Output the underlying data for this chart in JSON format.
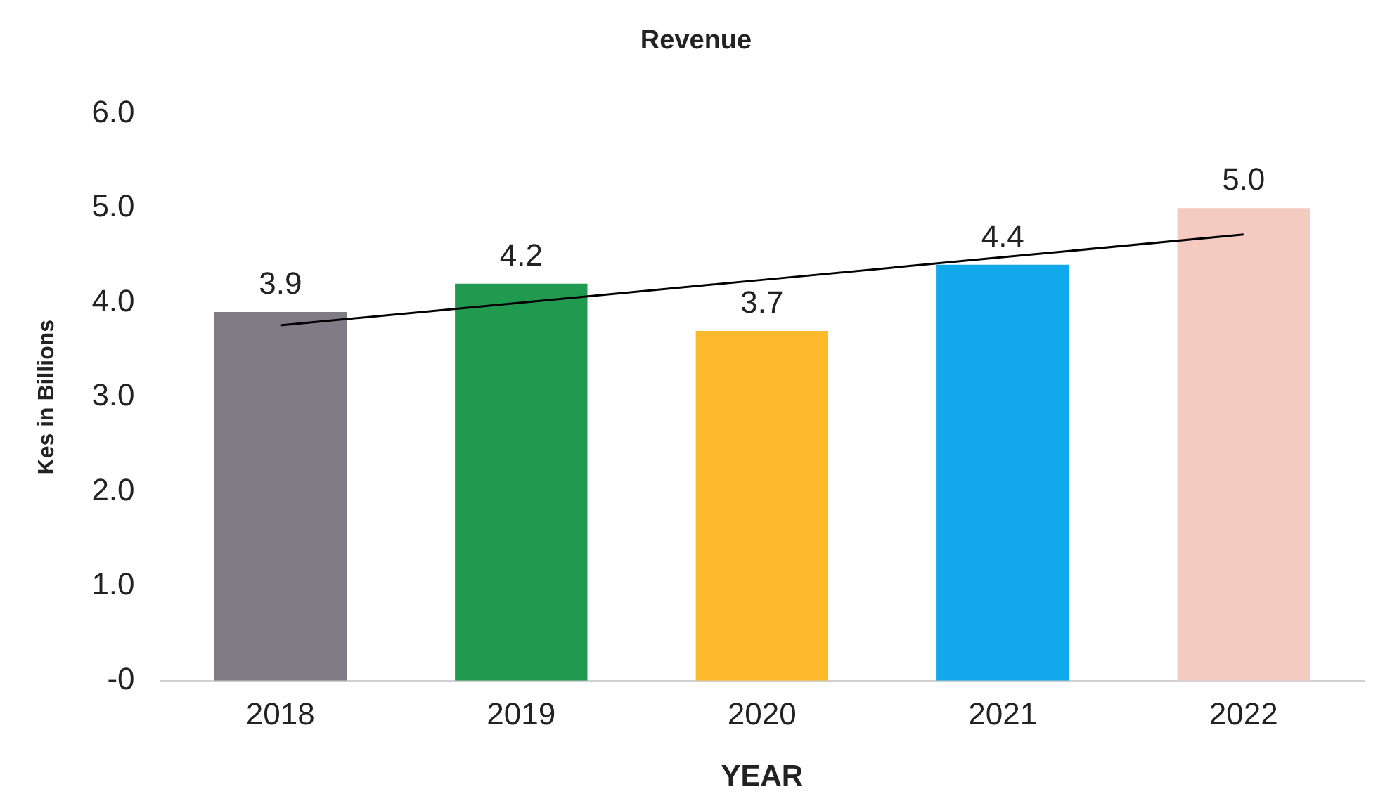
{
  "chart_data": {
    "type": "bar",
    "title": "Revenue",
    "xlabel": "YEAR",
    "ylabel": "Kes in Billions",
    "categories": [
      "2018",
      "2019",
      "2020",
      "2021",
      "2022"
    ],
    "series": [
      {
        "colors": [
          "#7f7c86",
          "#1f9a4e",
          "#fdb92c",
          "#12a8ec",
          "#f4cbc0"
        ],
        "values": [
          3.9,
          4.2,
          3.7,
          4.4,
          5.0
        ],
        "value_labels": [
          "3.9",
          "4.2",
          "3.7",
          "4.4",
          "5.0"
        ]
      },
      {
        "type": "line",
        "values": [
          3.76,
          4.0,
          4.24,
          4.48,
          4.72
        ],
        "color": "#000000"
      }
    ],
    "ylim": [
      0,
      6
    ],
    "yticks": [
      {
        "value": 0,
        "label": "-0"
      },
      {
        "value": 1,
        "label": "1.0"
      },
      {
        "value": 2,
        "label": "2.0"
      },
      {
        "value": 3,
        "label": "3.0"
      },
      {
        "value": 4,
        "label": "4.0"
      },
      {
        "value": 5,
        "label": "5.0"
      },
      {
        "value": 6,
        "label": "6.0"
      }
    ],
    "grid": false,
    "legend": false
  }
}
